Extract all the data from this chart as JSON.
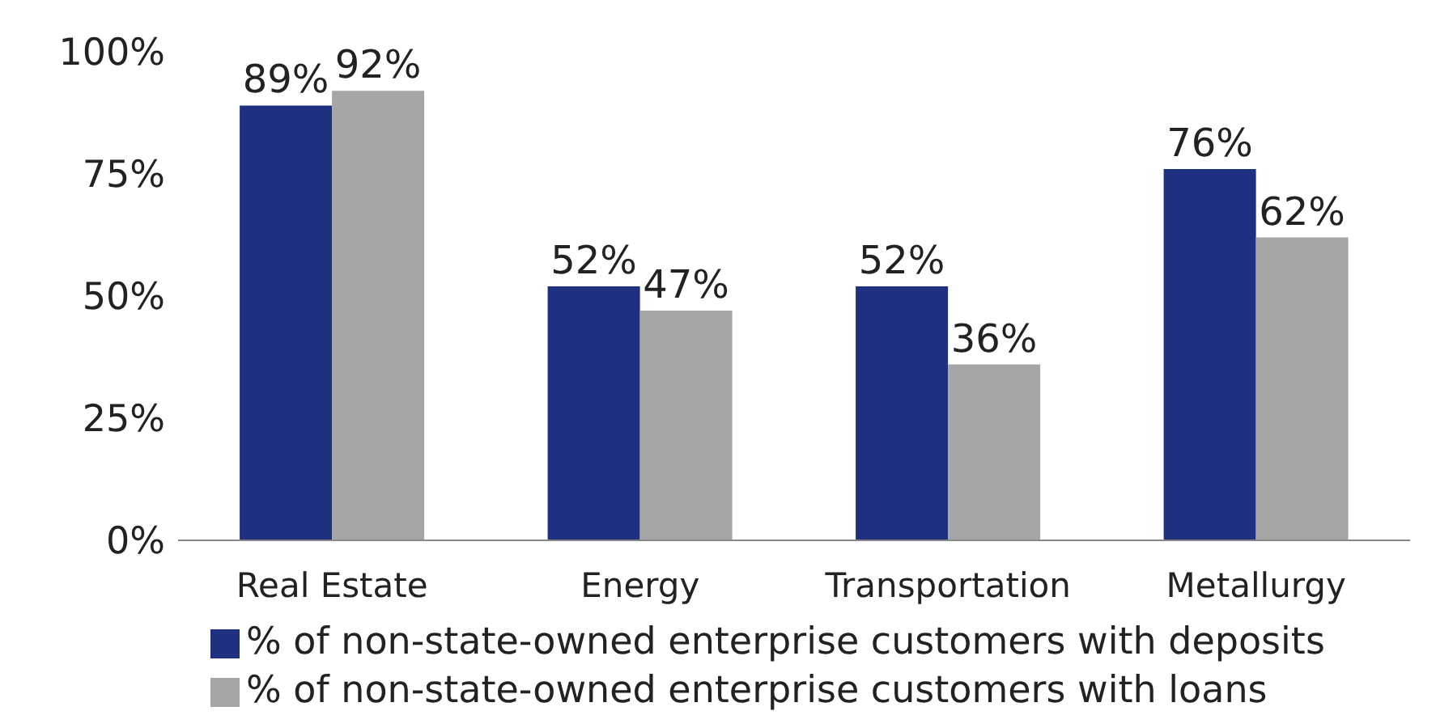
{
  "chart_data": {
    "type": "bar",
    "categories": [
      "Real Estate",
      "Energy",
      "Transportation",
      "Metallurgy"
    ],
    "series": [
      {
        "name": "% of non-state-owned enterprise customers with deposits",
        "color": "#1f3080",
        "values": [
          89,
          52,
          52,
          76
        ],
        "value_labels": [
          "89%",
          "52%",
          "52%",
          "76%"
        ]
      },
      {
        "name": "% of non-state-owned enterprise customers with loans",
        "color": "#a6a6a6",
        "values": [
          92,
          47,
          36,
          62
        ],
        "value_labels": [
          "92%",
          "47%",
          "36%",
          "62%"
        ]
      }
    ],
    "ylim": [
      0,
      100
    ],
    "yticks": [
      {
        "value": 0,
        "label": "0%"
      },
      {
        "value": 25,
        "label": "25%"
      },
      {
        "value": 50,
        "label": "50%"
      },
      {
        "value": 75,
        "label": "75%"
      },
      {
        "value": 100,
        "label": "100%"
      }
    ],
    "legend": "bottom left"
  }
}
